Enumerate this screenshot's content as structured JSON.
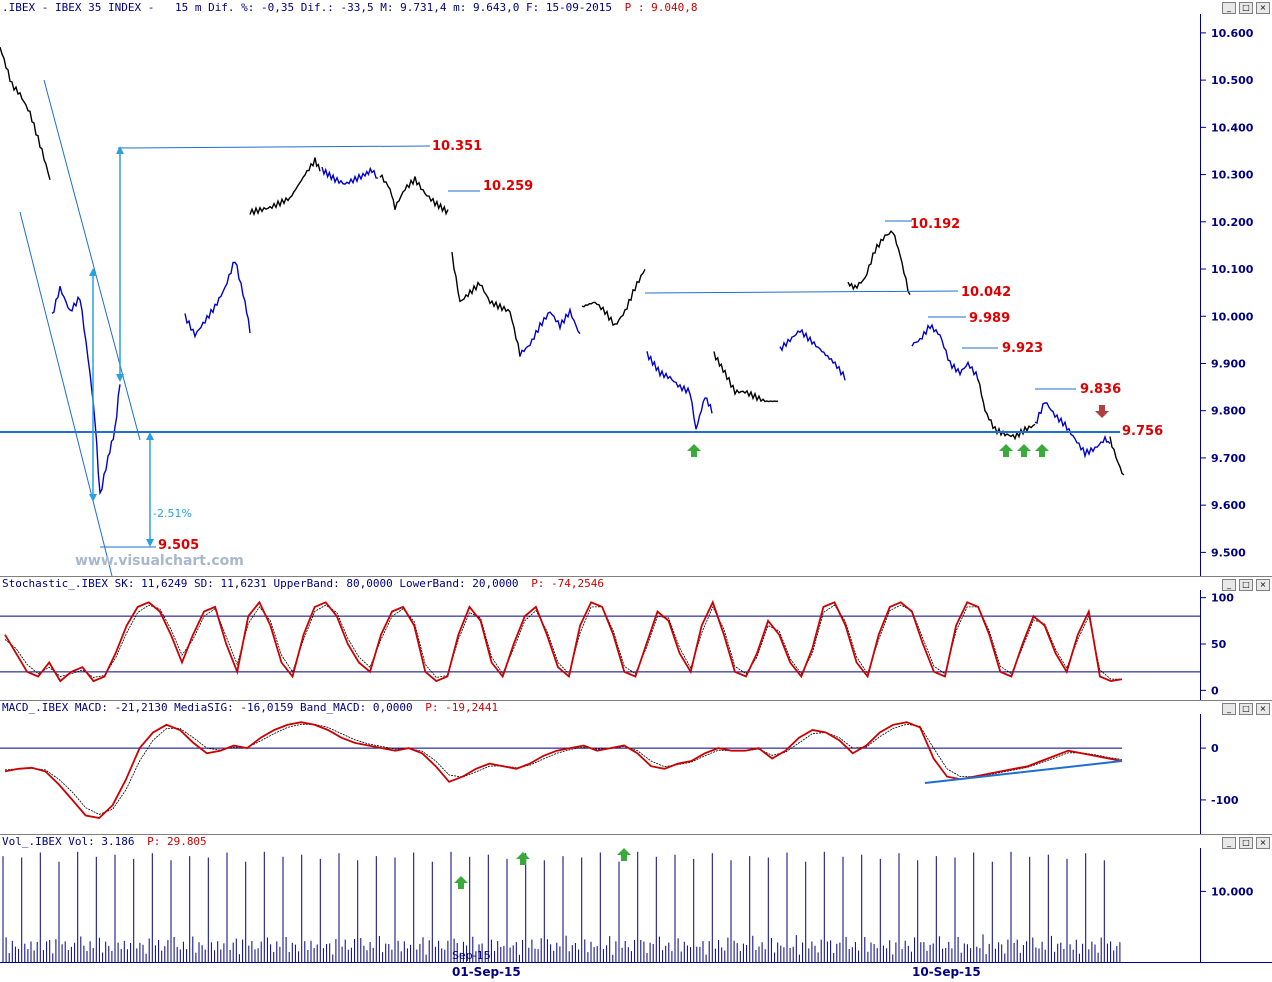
{
  "window": {
    "header": {
      "symbol": ".IBEX - IBEX 35 INDEX -",
      "details": "15 m Dif. %: -0,35 Dif.: -33,5 M: 9.731,4 m: 9.643,0 F: 15-09-2015",
      "p_value": "P : 9.040,8"
    },
    "buttons": [
      "_",
      "□",
      "×"
    ]
  },
  "watermark": "www.visualchart.com",
  "annotations": {
    "price_labels": [
      "10.351",
      "10.259",
      "10.192",
      "10.042",
      "9.989",
      "9.923",
      "9.836",
      "9.756",
      "9.505"
    ],
    "percent_label": "-2.51%"
  },
  "stochastic": {
    "header": "Stochastic_.IBEX SK: 11,6249 SD: 11,6231 UpperBand: 80,0000 LowerBand: 20,0000",
    "p_value": "P: -74,2546",
    "ticks": [
      "100",
      "50",
      "0"
    ]
  },
  "macd": {
    "header": "MACD_.IBEX MACD: -21,2130 MediaSIG: -16,0159 Band_MACD: 0,0000",
    "p_value": "P: -19,2441",
    "ticks": [
      "0",
      "-100"
    ]
  },
  "volume": {
    "header": "Vol_.IBEX Vol: 3.186",
    "p_value": "P: 29.805",
    "ticks": [
      "10.000"
    ],
    "overlay_label": "Sep-15"
  },
  "x_axis": {
    "labels": [
      "01-Sep-15",
      "10-Sep-15"
    ]
  },
  "chart_data": [
    {
      "type": "line",
      "title": ".IBEX - IBEX 35 INDEX - 15 m",
      "ylim": [
        9450,
        10640
      ],
      "yticks": [
        "10.600",
        "10.500",
        "10.400",
        "10.300",
        "10.200",
        "10.100",
        "10.000",
        "9.900",
        "9.800",
        "9.700",
        "9.600",
        "9.500"
      ],
      "series": [
        {
          "color": "#000000",
          "segments": [
            [
              [
                0,
                10570
              ],
              [
                12,
                10490
              ],
              [
                20,
                10470
              ],
              [
                30,
                10430
              ],
              [
                42,
                10350
              ],
              [
                50,
                10290
              ]
            ],
            [
              [
                250,
                10220
              ],
              [
                270,
                10230
              ],
              [
                290,
                10250
              ],
              [
                305,
                10300
              ],
              [
                315,
                10330
              ],
              [
                320,
                10310
              ]
            ],
            [
              [
                380,
                10300
              ],
              [
                390,
                10270
              ],
              [
                395,
                10230
              ],
              [
                405,
                10270
              ],
              [
                415,
                10290
              ],
              [
                425,
                10260
              ],
              [
                435,
                10240
              ],
              [
                448,
                10220
              ]
            ],
            [
              [
                452,
                10130
              ],
              [
                460,
                10030
              ],
              [
                470,
                10050
              ],
              [
                480,
                10070
              ],
              [
                490,
                10030
              ],
              [
                500,
                10020
              ],
              [
                510,
                10010
              ],
              [
                520,
                9920
              ]
            ],
            [
              [
                582,
                10020
              ],
              [
                595,
                10030
              ],
              [
                605,
                10010
              ],
              [
                615,
                9980
              ],
              [
                625,
                10010
              ],
              [
                635,
                10060
              ],
              [
                645,
                10100
              ]
            ],
            [
              [
                714,
                9920
              ],
              [
                725,
                9880
              ],
              [
                735,
                9840
              ],
              [
                745,
                9840
              ],
              [
                755,
                9830
              ],
              [
                765,
                9820
              ],
              [
                778,
                9820
              ]
            ],
            [
              [
                848,
                10070
              ],
              [
                855,
                10060
              ],
              [
                865,
                10080
              ],
              [
                875,
                10140
              ],
              [
                885,
                10170
              ],
              [
                893,
                10180
              ],
              [
                900,
                10130
              ],
              [
                910,
                10040
              ]
            ],
            [
              [
                978,
                9870
              ],
              [
                985,
                9800
              ],
              [
                995,
                9760
              ],
              [
                1005,
                9750
              ],
              [
                1015,
                9745
              ],
              [
                1025,
                9760
              ],
              [
                1035,
                9770
              ]
            ],
            [
              [
                1110,
                9740
              ],
              [
                1118,
                9690
              ],
              [
                1124,
                9660
              ]
            ]
          ]
        },
        {
          "color": "#0000cc",
          "segments": [
            [
              [
                52,
                10000
              ],
              [
                60,
                10060
              ],
              [
                70,
                10010
              ],
              [
                80,
                10040
              ],
              [
                90,
                9880
              ],
              [
                95,
                9780
              ],
              [
                100,
                9620
              ],
              [
                108,
                9700
              ],
              [
                115,
                9760
              ],
              [
                120,
                9860
              ]
            ],
            [
              [
                185,
                10000
              ],
              [
                195,
                9960
              ],
              [
                205,
                9990
              ],
              [
                215,
                10020
              ],
              [
                225,
                10060
              ],
              [
                235,
                10120
              ],
              [
                245,
                10030
              ],
              [
                250,
                9970
              ]
            ],
            [
              [
                322,
                10310
              ],
              [
                335,
                10290
              ],
              [
                345,
                10280
              ],
              [
                355,
                10290
              ],
              [
                365,
                10300
              ],
              [
                372,
                10310
              ],
              [
                378,
                10290
              ]
            ],
            [
              [
                520,
                9920
              ],
              [
                530,
                9940
              ],
              [
                540,
                9980
              ],
              [
                550,
                10010
              ],
              [
                560,
                9980
              ],
              [
                570,
                10010
              ],
              [
                580,
                9960
              ]
            ],
            [
              [
                647,
                9920
              ],
              [
                660,
                9880
              ],
              [
                670,
                9870
              ],
              [
                680,
                9850
              ],
              [
                690,
                9840
              ],
              [
                696,
                9760
              ],
              [
                705,
                9830
              ],
              [
                712,
                9800
              ]
            ],
            [
              [
                780,
                9930
              ],
              [
                790,
                9950
              ],
              [
                800,
                9970
              ],
              [
                810,
                9950
              ],
              [
                820,
                9930
              ],
              [
                835,
                9900
              ],
              [
                845,
                9870
              ]
            ],
            [
              [
                912,
                9940
              ],
              [
                920,
                9950
              ],
              [
                930,
                9980
              ],
              [
                940,
                9960
              ],
              [
                950,
                9900
              ],
              [
                960,
                9880
              ],
              [
                968,
                9900
              ],
              [
                978,
                9870
              ]
            ],
            [
              [
                1035,
                9770
              ],
              [
                1045,
                9820
              ],
              [
                1055,
                9790
              ],
              [
                1065,
                9770
              ],
              [
                1075,
                9740
              ],
              [
                1085,
                9710
              ],
              [
                1095,
                9720
              ],
              [
                1105,
                9740
              ],
              [
                1110,
                9730
              ]
            ]
          ]
        }
      ]
    },
    {
      "type": "line",
      "title": "Stochastic_.IBEX",
      "ylim": [
        -5,
        105
      ],
      "bands": [
        80,
        20
      ],
      "series": [
        {
          "name": "SK",
          "color": "#cc0000",
          "values": [
            60,
            40,
            20,
            15,
            30,
            10,
            20,
            25,
            10,
            15,
            40,
            70,
            90,
            95,
            85,
            60,
            30,
            60,
            85,
            90,
            50,
            20,
            80,
            95,
            70,
            30,
            15,
            60,
            90,
            95,
            80,
            50,
            30,
            20,
            60,
            85,
            90,
            70,
            20,
            10,
            15,
            60,
            90,
            75,
            30,
            15,
            50,
            80,
            90,
            60,
            25,
            15,
            70,
            95,
            90,
            60,
            20,
            15,
            50,
            85,
            75,
            40,
            20,
            70,
            95,
            60,
            20,
            15,
            40,
            75,
            60,
            30,
            15,
            45,
            90,
            95,
            70,
            30,
            15,
            60,
            90,
            95,
            85,
            50,
            20,
            15,
            70,
            95,
            90,
            60,
            20,
            15,
            50,
            80,
            70,
            40,
            20,
            60,
            85,
            15,
            10,
            12
          ]
        },
        {
          "name": "SD",
          "color": "#000000",
          "values": [
            55,
            45,
            28,
            18,
            25,
            15,
            18,
            22,
            14,
            16,
            35,
            62,
            84,
            92,
            88,
            66,
            38,
            55,
            80,
            88,
            58,
            28,
            72,
            90,
            75,
            38,
            20,
            55,
            85,
            92,
            84,
            56,
            36,
            25,
            55,
            80,
            88,
            74,
            28,
            14,
            16,
            55,
            84,
            78,
            36,
            18,
            45,
            75,
            86,
            64,
            30,
            18,
            62,
            90,
            90,
            64,
            26,
            18,
            46,
            80,
            78,
            46,
            24,
            62,
            90,
            66,
            26,
            18,
            36,
            70,
            64,
            34,
            18,
            40,
            84,
            92,
            74,
            36,
            18,
            55,
            86,
            92,
            86,
            56,
            26,
            18,
            64,
            90,
            90,
            64,
            26,
            18,
            46,
            76,
            72,
            44,
            24,
            55,
            80,
            22,
            12,
            12
          ]
        }
      ]
    },
    {
      "type": "line",
      "title": "MACD_.IBEX",
      "ylim": [
        -160,
        60
      ],
      "bands": [
        0
      ],
      "series": [
        {
          "name": "MACD",
          "color": "#cc0000",
          "values": [
            -45,
            -40,
            -38,
            -45,
            -70,
            -100,
            -130,
            -135,
            -110,
            -60,
            0,
            30,
            45,
            35,
            10,
            -10,
            -5,
            5,
            0,
            20,
            35,
            45,
            50,
            45,
            35,
            20,
            10,
            5,
            0,
            -5,
            0,
            -10,
            -35,
            -65,
            -55,
            -40,
            -30,
            -35,
            -40,
            -30,
            -15,
            -5,
            0,
            5,
            -5,
            0,
            5,
            -10,
            -35,
            -40,
            -30,
            -25,
            -10,
            0,
            -5,
            -5,
            0,
            -20,
            -5,
            20,
            35,
            30,
            15,
            -10,
            5,
            30,
            45,
            50,
            40,
            -20,
            -55,
            -60,
            -55,
            -50,
            -45,
            -40,
            -35,
            -25,
            -15,
            -5,
            -10,
            -15,
            -20,
            -25
          ]
        },
        {
          "name": "MediaSIG",
          "color": "#000000",
          "values": [
            -42,
            -40,
            -39,
            -42,
            -60,
            -85,
            -115,
            -128,
            -118,
            -80,
            -25,
            15,
            38,
            38,
            20,
            0,
            -4,
            2,
            1,
            14,
            28,
            40,
            46,
            46,
            40,
            28,
            16,
            8,
            3,
            -2,
            -1,
            -6,
            -25,
            -52,
            -56,
            -46,
            -35,
            -34,
            -38,
            -33,
            -21,
            -10,
            -3,
            2,
            -2,
            -1,
            3,
            -5,
            -25,
            -36,
            -32,
            -27,
            -15,
            -4,
            -5,
            -5,
            -2,
            -14,
            -8,
            10,
            28,
            30,
            20,
            0,
            2,
            22,
            38,
            46,
            42,
            0,
            -40,
            -55,
            -55,
            -52,
            -47,
            -42,
            -37,
            -28,
            -19,
            -9,
            -9,
            -13,
            -18,
            -22
          ]
        }
      ]
    },
    {
      "type": "bar",
      "title": "Vol_.IBEX",
      "ylim": [
        0,
        16000
      ],
      "series": [
        {
          "name": "Vol",
          "color": "#000080",
          "values": [
            15000,
            3200,
            2100,
            2600,
            1800,
            2900,
            14800,
            3400,
            2200,
            1900,
            2500,
            3000,
            15500,
            2800,
            2300,
            3600,
            1700,
            2400,
            14200,
            3100,
            2000,
            2700,
            1600,
            2300,
            15600,
            3300,
            2500,
            2100,
            1900,
            2800,
            14900,
            3000,
            2200,
            2600,
            1800,
            2500,
            15200,
            3500,
            2400,
            2000,
            2700,
            2900,
            14600,
            3200,
            2100,
            2300,
            1700,
            2600,
            15400,
            3000,
            2300,
            2500,
            1900,
            2800,
            14400,
            3300,
            2000,
            2600,
            1800,
            2400
          ]
        }
      ]
    }
  ]
}
